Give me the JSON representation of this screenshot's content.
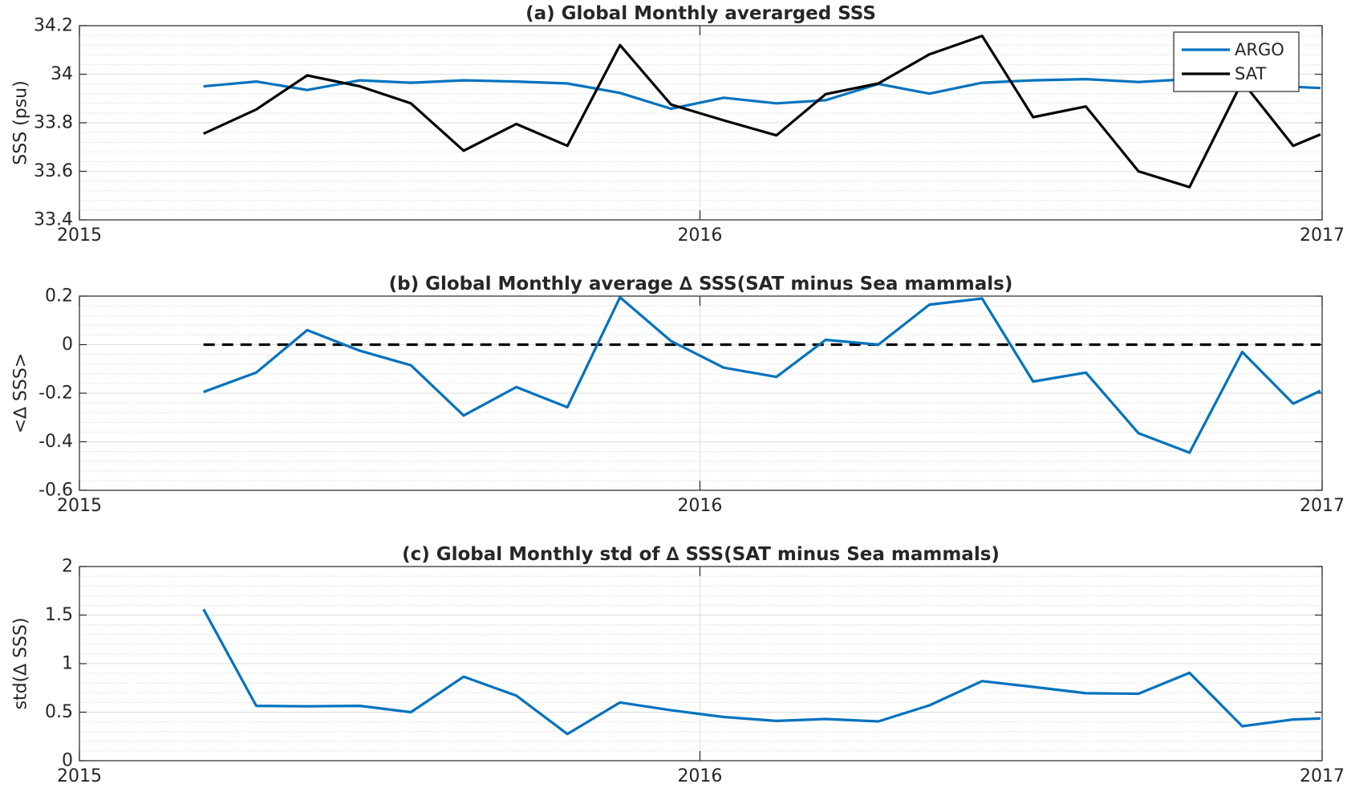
{
  "chart_data": [
    {
      "type": "line",
      "title": "(a) Global Monthly averarged SSS",
      "ylabel": "SSS (psu)",
      "xlabel": "",
      "xlim": [
        "2015-01-01",
        "2017-01-01"
      ],
      "ylim": [
        33.4,
        34.2
      ],
      "x_ticks": [
        "2015",
        "2016",
        "2017"
      ],
      "y_ticks": [
        "33.4",
        "33.6",
        "33.8",
        "34",
        "34.2"
      ],
      "grid": true,
      "minor_grid": true,
      "legend": {
        "position": "top-right"
      },
      "x": [
        "2015-03",
        "2015-04",
        "2015-05",
        "2015-06",
        "2015-07",
        "2015-08",
        "2015-09",
        "2015-10",
        "2015-11",
        "2015-12",
        "2016-01",
        "2016-02",
        "2016-03",
        "2016-04",
        "2016-05",
        "2016-06",
        "2016-07",
        "2016-08",
        "2016-09",
        "2016-10",
        "2016-11",
        "2016-12",
        "2016-12-31"
      ],
      "series": [
        {
          "name": "ARGO",
          "color": "#0072BD",
          "values": [
            33.95,
            33.97,
            33.935,
            33.975,
            33.965,
            33.975,
            33.97,
            33.962,
            33.923,
            33.858,
            33.903,
            33.88,
            33.893,
            33.96,
            33.92,
            33.965,
            33.975,
            33.98,
            33.968,
            33.98,
            33.97,
            33.948,
            33.943
          ]
        },
        {
          "name": "SAT",
          "color": "#000000",
          "values": [
            33.755,
            33.855,
            33.995,
            33.95,
            33.88,
            33.685,
            33.795,
            33.705,
            34.12,
            33.875,
            33.81,
            33.748,
            33.918,
            33.962,
            34.082,
            34.158,
            33.823,
            33.867,
            33.6,
            33.535,
            33.97,
            33.705,
            33.752
          ]
        }
      ]
    },
    {
      "type": "line",
      "title": "(b) Global Monthly average ∆ SSS(SAT minus Sea mammals)",
      "ylabel": "<∆ SSS>",
      "xlabel": "",
      "xlim": [
        "2015-01-01",
        "2017-01-01"
      ],
      "ylim": [
        -0.6,
        0.2
      ],
      "x_ticks": [
        "2015",
        "2016",
        "2017"
      ],
      "y_ticks": [
        "-0.6",
        "-0.4",
        "-0.2",
        "0",
        "0.2"
      ],
      "grid": true,
      "minor_grid": true,
      "x": [
        "2015-03",
        "2015-04",
        "2015-05",
        "2015-06",
        "2015-07",
        "2015-08",
        "2015-09",
        "2015-10",
        "2015-11",
        "2015-12",
        "2016-01",
        "2016-02",
        "2016-03",
        "2016-04",
        "2016-05",
        "2016-06",
        "2016-07",
        "2016-08",
        "2016-09",
        "2016-10",
        "2016-11",
        "2016-12",
        "2016-12-31"
      ],
      "series": [
        {
          "color": "#0072BD",
          "values": [
            -0.195,
            -0.115,
            0.06,
            -0.025,
            -0.085,
            -0.292,
            -0.175,
            -0.258,
            0.195,
            0.015,
            -0.095,
            -0.133,
            0.02,
            0.0,
            0.165,
            0.19,
            -0.152,
            -0.115,
            -0.365,
            -0.445,
            -0.03,
            -0.243,
            -0.19
          ]
        }
      ],
      "reference_line": {
        "y": 0,
        "style": "dashed",
        "color": "#000000"
      }
    },
    {
      "type": "line",
      "title": "(c) Global Monthly std of ∆ SSS(SAT minus Sea mammals)",
      "ylabel": "std(∆ SSS)",
      "xlabel": "",
      "xlim": [
        "2015-01-01",
        "2017-01-01"
      ],
      "ylim": [
        0,
        2
      ],
      "x_ticks": [
        "2015",
        "2016",
        "2017"
      ],
      "y_ticks": [
        "0",
        "0.5",
        "1",
        "1.5",
        "2"
      ],
      "grid": true,
      "minor_grid": true,
      "x": [
        "2015-03",
        "2015-04",
        "2015-05",
        "2015-06",
        "2015-07",
        "2015-08",
        "2015-09",
        "2015-10",
        "2015-11",
        "2015-12",
        "2016-01",
        "2016-02",
        "2016-03",
        "2016-04",
        "2016-05",
        "2016-06",
        "2016-07",
        "2016-08",
        "2016-09",
        "2016-10",
        "2016-11",
        "2016-12",
        "2016-12-31"
      ],
      "series": [
        {
          "color": "#0072BD",
          "values": [
            1.56,
            0.565,
            0.56,
            0.565,
            0.5,
            0.865,
            0.67,
            0.275,
            0.6,
            0.52,
            0.45,
            0.41,
            0.43,
            0.405,
            0.57,
            0.82,
            0.76,
            0.695,
            0.69,
            0.905,
            0.355,
            0.425,
            0.435
          ]
        }
      ]
    }
  ]
}
